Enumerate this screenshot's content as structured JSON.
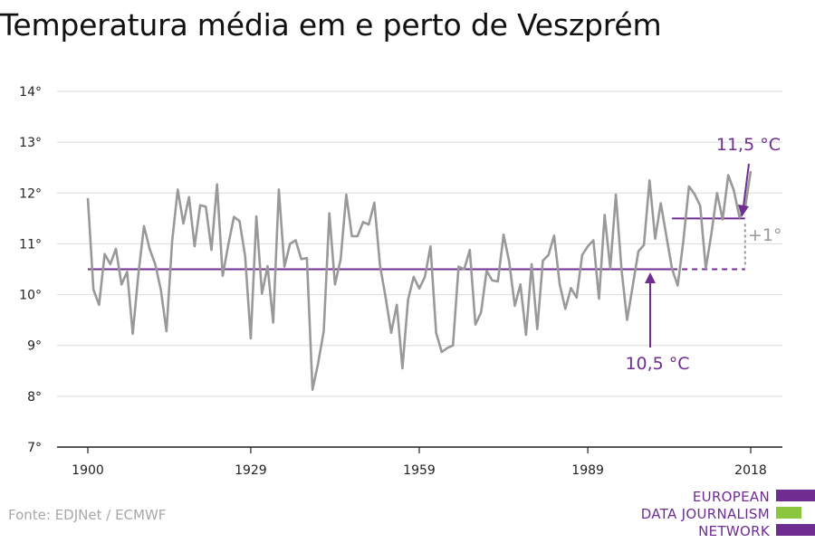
{
  "title": "Temperatura média em e perto de Veszprém",
  "source": "Fonte: EDJNet / ECMWF",
  "logo": {
    "lines": [
      "EUROPEAN",
      "DATA JOURNALISM",
      "NETWORK"
    ],
    "colors": {
      "purple": "#6f2d91",
      "green": "#8cc63f"
    }
  },
  "colors": {
    "series": "#999999",
    "baseline": "#6f2d91",
    "annotation_gray": "#9a9a9a",
    "grid": "#e0e0e0",
    "axis": "#222222"
  },
  "chart_data": {
    "type": "line",
    "title": "Temperatura média em e perto de Veszprém",
    "xlabel": "",
    "ylabel": "",
    "xlim": [
      1900,
      2018
    ],
    "ylim": [
      7,
      14
    ],
    "x_ticks": [
      1900,
      1929,
      1959,
      1989,
      2018
    ],
    "y_ticks": [
      7,
      8,
      9,
      10,
      11,
      12,
      13,
      14
    ],
    "y_tick_labels": [
      "7°",
      "8°",
      "9°",
      "10°",
      "11°",
      "12°",
      "13°",
      "14°"
    ],
    "grid": true,
    "series": [
      {
        "x": [
          1900,
          1901,
          1902,
          1903,
          1904,
          1905,
          1906,
          1907,
          1908,
          1909,
          1910,
          1911,
          1912,
          1913,
          1914,
          1915,
          1916,
          1917,
          1918,
          1919,
          1920,
          1921,
          1922,
          1923,
          1924,
          1925,
          1926,
          1927,
          1928,
          1929,
          1930,
          1931,
          1932,
          1933,
          1934,
          1935,
          1936,
          1937,
          1938,
          1939,
          1940,
          1941,
          1942,
          1943,
          1944,
          1945,
          1946,
          1947,
          1948,
          1949,
          1950,
          1951,
          1952,
          1953,
          1954,
          1955,
          1956,
          1957,
          1958,
          1959,
          1960,
          1961,
          1962,
          1963,
          1964,
          1965,
          1966,
          1967,
          1968,
          1969,
          1970,
          1971,
          1972,
          1973,
          1974,
          1975,
          1976,
          1977,
          1978,
          1979,
          1980,
          1981,
          1982,
          1983,
          1984,
          1985,
          1986,
          1987,
          1988,
          1989,
          1990,
          1991,
          1992,
          1993,
          1994,
          1995,
          1996,
          1997,
          1998,
          1999,
          2000,
          2001,
          2002,
          2003,
          2004,
          2005,
          2006,
          2007,
          2008,
          2009,
          2010,
          2011,
          2012,
          2013,
          2014,
          2015,
          2016,
          2017,
          2018
        ],
        "values": [
          11.9,
          10.1,
          9.8,
          10.8,
          10.6,
          10.9,
          10.2,
          10.45,
          9.23,
          10.4,
          11.35,
          10.9,
          10.6,
          10.1,
          9.28,
          11.05,
          12.07,
          11.4,
          11.92,
          10.95,
          11.76,
          11.73,
          10.88,
          12.17,
          10.37,
          10.98,
          11.53,
          11.45,
          10.76,
          9.14,
          11.54,
          10.02,
          10.56,
          9.45,
          12.07,
          10.55,
          11.0,
          11.07,
          10.7,
          10.72,
          8.13,
          8.65,
          9.28,
          11.6,
          10.2,
          10.7,
          11.97,
          11.15,
          11.15,
          11.43,
          11.38,
          11.81,
          10.58,
          9.95,
          9.25,
          9.8,
          8.55,
          9.9,
          10.35,
          10.12,
          10.35,
          10.95,
          9.25,
          8.87,
          8.95,
          9.0,
          10.55,
          10.5,
          10.88,
          9.41,
          9.65,
          10.47,
          10.28,
          10.26,
          11.18,
          10.65,
          9.78,
          10.2,
          9.21,
          10.6,
          9.32,
          10.67,
          10.78,
          11.16,
          10.2,
          9.72,
          10.13,
          9.94,
          10.78,
          10.95,
          11.07,
          9.92,
          11.57,
          10.52,
          11.97,
          10.5,
          9.5,
          10.17,
          10.85,
          10.98,
          12.25,
          11.1,
          11.8,
          11.15,
          10.5,
          10.18,
          11.05,
          12.13,
          11.98,
          11.75,
          10.52,
          11.2,
          12.0,
          11.48,
          12.35,
          12.05,
          11.52,
          11.7,
          12.43
        ]
      }
    ],
    "reference_lines": [
      {
        "from": 1900,
        "to": 2017,
        "value": 10.5,
        "dashed_from": 2004
      },
      {
        "from": 2004,
        "to": 2017,
        "value": 11.5
      }
    ],
    "annotations": [
      {
        "text": "11,5 °C",
        "color": "purple"
      },
      {
        "text": "10,5 °C",
        "color": "purple"
      },
      {
        "text": "+1°",
        "color": "gray"
      }
    ]
  }
}
